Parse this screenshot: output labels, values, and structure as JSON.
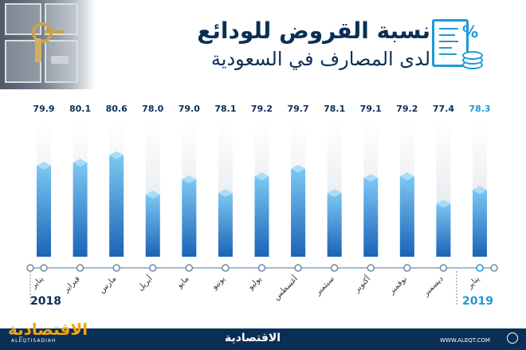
{
  "header": {
    "title_line1": "نسبة القروض للودائع",
    "title_line2": "لدى المصارف في السعودية"
  },
  "icons": {
    "document": "document-icon",
    "percent_symbol": "%",
    "coins": "coins-icon",
    "vault": "safe-deposit-boxes-image"
  },
  "colors": {
    "navy": "#0a2f56",
    "accent_blue": "#1e9ad6",
    "bar_top": "#7cc8f2",
    "bar_bottom": "#1b63b8",
    "bar_track": "#d9dee4",
    "logo_orange": "#f2a30f"
  },
  "chart_data": {
    "type": "bar",
    "title": "",
    "xlabel": "",
    "ylabel": "",
    "categories": [
      "يناير",
      "فبراير",
      "مارس",
      "أبريل",
      "مايو",
      "يونيو",
      "يوليو",
      "أغسطس",
      "سبتمبر",
      "أكتوبر",
      "نوفمبر",
      "ديسمبر",
      "يناير"
    ],
    "values": [
      79.9,
      80.1,
      80.6,
      78.0,
      79.0,
      78.1,
      79.2,
      79.7,
      78.1,
      79.1,
      79.2,
      77.4,
      78.3
    ],
    "value_labels": [
      "79.9",
      "80.1",
      "80.6",
      "78.0",
      "79.0",
      "78.1",
      "79.2",
      "79.7",
      "78.1",
      "79.1",
      "79.2",
      "77.4",
      "78.3"
    ],
    "highlight_last": true,
    "years": [
      "2018",
      "2019"
    ],
    "grid": false,
    "legend": "none"
  },
  "footer": {
    "logo_left": "الاقتصادية",
    "logo_sub": "ALEQTISADIAH",
    "logo_center": "الاقتصادية",
    "site": "WWW.ALEQT.COM"
  }
}
